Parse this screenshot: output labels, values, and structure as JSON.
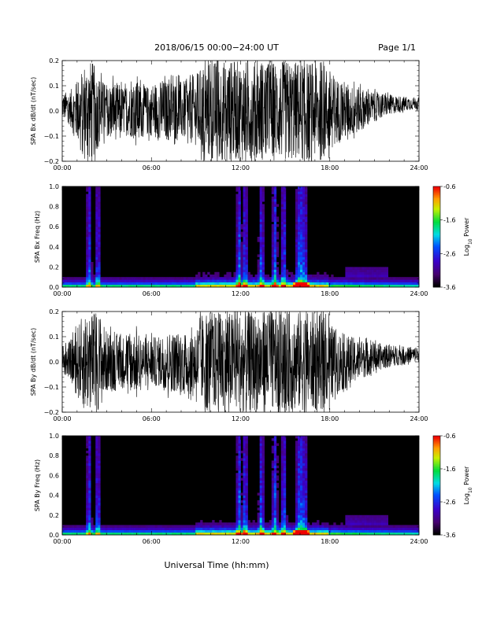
{
  "header": {
    "title": "2018/06/15  00:00−24:00 UT",
    "page": "Page 1/1"
  },
  "footer": {
    "xlabel": "Universal Time (hh:mm)"
  },
  "x_ticks": [
    "00:00",
    "06:00",
    "12:00",
    "18:00",
    "24:00"
  ],
  "chart_data": [
    {
      "type": "line",
      "ylabel": "SPA Bx dB/dt (nT/sec)",
      "xlabel": "Universal Time (hh:mm)",
      "xlim": [
        0,
        24
      ],
      "ylim": [
        -0.2,
        0.2
      ],
      "y_ticks": [
        "0.2",
        "0.1",
        "0.0",
        "−0.1",
        "−0.2"
      ],
      "series": [
        {
          "x": [
            0,
            0.5,
            1,
            1.5,
            2,
            2.5,
            3,
            3.5,
            4,
            4.5,
            5,
            5.5,
            6,
            6.5,
            7,
            7.5,
            8,
            8.5,
            9,
            9.5,
            10,
            10.5,
            11,
            11.5,
            12,
            12.5,
            13,
            13.5,
            14,
            14.5,
            15,
            15.5,
            16,
            16.5,
            17,
            17.5,
            18,
            18.5,
            19,
            19.5,
            20,
            20.5,
            21,
            21.5,
            22,
            22.5,
            23,
            23.5,
            24
          ],
          "y_amplitude": [
            0.05,
            0.07,
            0.12,
            0.2,
            0.2,
            0.14,
            0.1,
            0.12,
            0.1,
            0.1,
            0.12,
            0.1,
            0.1,
            0.12,
            0.12,
            0.12,
            0.12,
            0.12,
            0.15,
            0.18,
            0.2,
            0.2,
            0.2,
            0.2,
            0.2,
            0.2,
            0.2,
            0.2,
            0.2,
            0.2,
            0.2,
            0.2,
            0.2,
            0.2,
            0.2,
            0.2,
            0.16,
            0.13,
            0.12,
            0.1,
            0.09,
            0.07,
            0.06,
            0.05,
            0.04,
            0.035,
            0.03,
            0.025,
            0.025
          ]
        }
      ]
    },
    {
      "type": "heatmap",
      "ylabel": "SPA Bx Freq (Hz)",
      "xlim": [
        0,
        24
      ],
      "ylim": [
        0.0,
        1.0
      ],
      "y_ticks": [
        "1.0",
        "0.8",
        "0.6",
        "0.4",
        "0.2",
        "0.0"
      ],
      "colorbar": {
        "label": "Log10 Power",
        "range": [
          -3.6,
          -0.6
        ],
        "ticks": [
          "-0.6",
          "-1.6",
          "-2.6",
          "-3.6"
        ]
      },
      "bright_columns_hr": [
        1.8,
        2.4,
        11.9,
        12.3,
        13.4,
        14.3,
        14.9,
        15.9,
        16.1,
        16.3
      ],
      "low_freq_band_hz": 0.05
    },
    {
      "type": "line",
      "ylabel": "SPA By dB/dt (nT/sec)",
      "xlim": [
        0,
        24
      ],
      "ylim": [
        -0.2,
        0.2
      ],
      "y_ticks": [
        "0.2",
        "0.1",
        "0.0",
        "−0.1",
        "−0.2"
      ],
      "series": [
        {
          "x": [
            0,
            0.5,
            1,
            1.5,
            2,
            2.5,
            3,
            3.5,
            4,
            4.5,
            5,
            5.5,
            6,
            6.5,
            7,
            7.5,
            8,
            8.5,
            9,
            9.5,
            10,
            10.5,
            11,
            11.5,
            12,
            12.5,
            13,
            13.5,
            14,
            14.5,
            15,
            15.5,
            16,
            16.5,
            17,
            17.5,
            18,
            18.5,
            19,
            19.5,
            20,
            20.5,
            21,
            21.5,
            22,
            22.5,
            23,
            23.5,
            24
          ],
          "y_amplitude": [
            0.05,
            0.07,
            0.14,
            0.2,
            0.2,
            0.2,
            0.12,
            0.12,
            0.1,
            0.12,
            0.12,
            0.1,
            0.1,
            0.1,
            0.12,
            0.12,
            0.12,
            0.13,
            0.15,
            0.18,
            0.2,
            0.2,
            0.2,
            0.2,
            0.2,
            0.2,
            0.2,
            0.2,
            0.2,
            0.2,
            0.2,
            0.2,
            0.2,
            0.2,
            0.2,
            0.19,
            0.16,
            0.13,
            0.11,
            0.1,
            0.08,
            0.07,
            0.06,
            0.05,
            0.045,
            0.04,
            0.035,
            0.03,
            0.03
          ]
        }
      ]
    },
    {
      "type": "heatmap",
      "ylabel": "SPA By Freq (Hz)",
      "xlim": [
        0,
        24
      ],
      "ylim": [
        0.0,
        1.0
      ],
      "y_ticks": [
        "1.0",
        "0.8",
        "0.6",
        "0.4",
        "0.2",
        "0.0"
      ],
      "colorbar": {
        "label": "Log10 Power",
        "range": [
          -3.6,
          -0.6
        ],
        "ticks": [
          "-0.6",
          "-1.6",
          "-2.6",
          "-3.6"
        ]
      },
      "bright_columns_hr": [
        1.8,
        2.4,
        11.9,
        12.3,
        13.4,
        14.3,
        14.9,
        15.9,
        16.1,
        16.3
      ],
      "low_freq_band_hz": 0.05
    }
  ],
  "colors": {
    "line": "#000000",
    "background": "#ffffff",
    "spectrogram_bg": "#000000"
  }
}
